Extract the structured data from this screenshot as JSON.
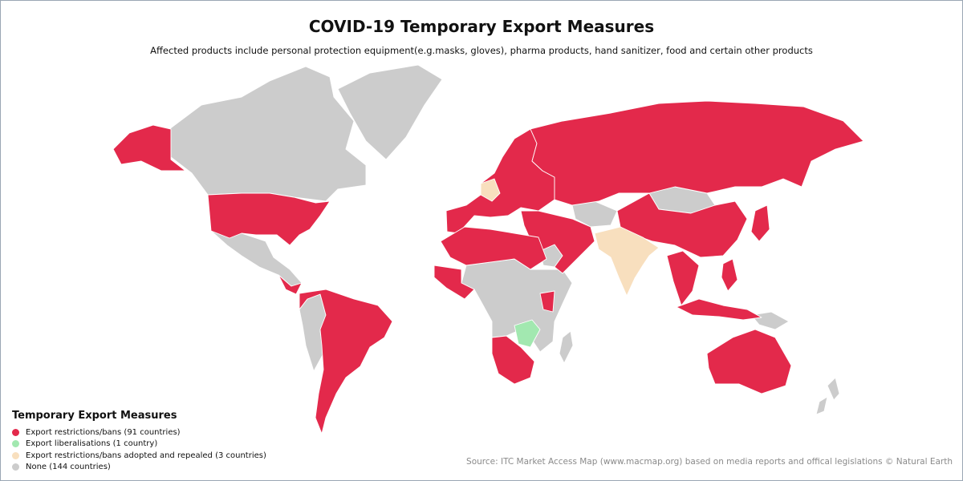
{
  "header": {
    "title": "COVID-19 Temporary Export Measures",
    "subtitle": "Affected products include personal protection equipment(e.g.masks, gloves), pharma products, hand sanitizer, food and certain other products"
  },
  "legend": {
    "title": "Temporary Export Measures",
    "items": [
      {
        "label": "Export restrictions/bans (91 countries)",
        "color": "#e3294b"
      },
      {
        "label": "Export liberalisations (1 country)",
        "color": "#a2e8b0"
      },
      {
        "label": "Export restrictions/bans adopted and repealed (3 countries)",
        "color": "#f8dfbe"
      },
      {
        "label": "None (144 countries)",
        "color": "#cccccc"
      }
    ]
  },
  "source": "Source: ITC Market Access Map (www.macmap.org) based on media reports and offical legislations © Natural Earth"
}
